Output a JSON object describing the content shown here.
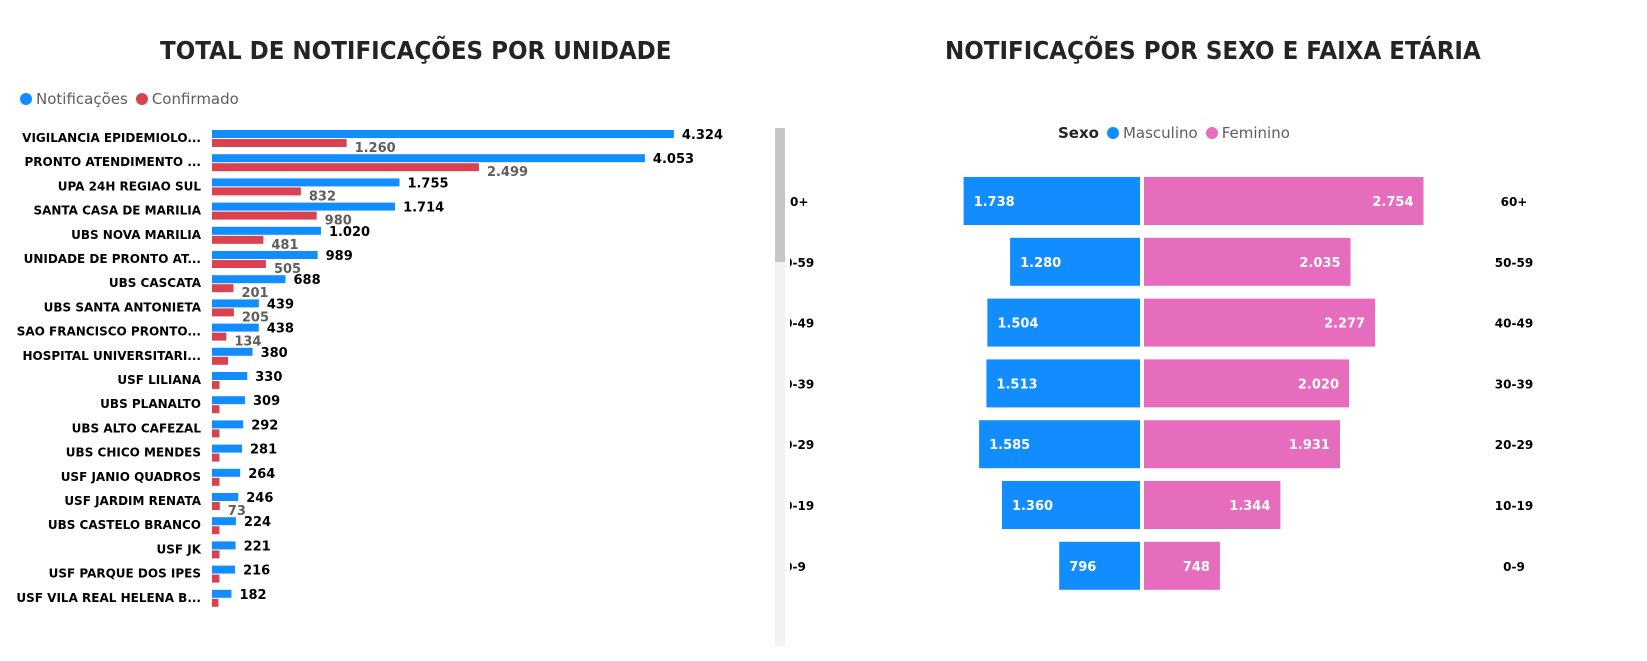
{
  "left": {
    "title": "TOTAL DE NOTIFICAÇÕES POR UNIDADE",
    "legend": [
      {
        "name": "Notificações",
        "color": "#118DFF"
      },
      {
        "name": "Confirmado",
        "color": "#D9434F"
      }
    ]
  },
  "right": {
    "title": "NOTIFICAÇÕES POR SEXO E FAIXA ETÁRIA",
    "legend_title": "Sexo",
    "legend": [
      {
        "name": "Masculino",
        "color": "#118DFF"
      },
      {
        "name": "Feminino",
        "color": "#E66CBD"
      }
    ]
  },
  "chart_data": [
    {
      "type": "bar",
      "orientation": "horizontal",
      "title": "TOTAL DE NOTIFICAÇÕES POR UNIDADE",
      "categories": [
        "VIGILANCIA EPIDEMIOLO...",
        "PRONTO ATENDIMENTO ...",
        "UPA 24H REGIAO SUL",
        "SANTA CASA DE MARILIA",
        "UBS NOVA MARILIA",
        "UNIDADE DE PRONTO AT...",
        "UBS CASCATA",
        "UBS SANTA ANTONIETA",
        "SAO FRANCISCO PRONTO...",
        "HOSPITAL UNIVERSITARI...",
        "USF LILIANA",
        "UBS PLANALTO",
        "UBS ALTO CAFEZAL",
        "UBS CHICO MENDES",
        "USF JANIO QUADROS",
        "USF JARDIM RENATA",
        "UBS CASTELO BRANCO",
        "USF JK",
        "USF PARQUE DOS IPES",
        "USF VILA REAL HELENA B..."
      ],
      "series": [
        {
          "name": "Notificações",
          "color": "#118DFF",
          "values": [
            4324,
            4053,
            1755,
            1714,
            1020,
            989,
            688,
            439,
            438,
            380,
            330,
            309,
            292,
            281,
            264,
            246,
            224,
            221,
            216,
            182
          ],
          "labels": [
            "4.324",
            "4.053",
            "1.755",
            "1.714",
            "1.020",
            "989",
            "688",
            "439",
            "438",
            "380",
            "330",
            "309",
            "292",
            "281",
            "264",
            "246",
            "224",
            "221",
            "216",
            "182"
          ]
        },
        {
          "name": "Confirmado",
          "color": "#D9434F",
          "values": [
            1260,
            2499,
            832,
            980,
            481,
            505,
            201,
            205,
            134,
            150,
            70,
            70,
            70,
            70,
            70,
            73,
            70,
            70,
            70,
            60
          ],
          "labels": [
            "1.260",
            "2.499",
            "832",
            "980",
            "481",
            "505",
            "201",
            "205",
            "134",
            "",
            "",
            "",
            "",
            "",
            "",
            "73",
            "",
            "",
            "",
            ""
          ]
        }
      ],
      "xlim": [
        0,
        4400
      ],
      "legend_position": "top-left"
    },
    {
      "type": "bar",
      "orientation": "horizontal",
      "subtype": "butterfly",
      "title": "NOTIFICAÇÕES POR SEXO E FAIXA ETÁRIA",
      "categories": [
        "60+",
        "50-59",
        "40-49",
        "30-39",
        "20-29",
        "10-19",
        "0-9"
      ],
      "series": [
        {
          "name": "Masculino",
          "color": "#118DFF",
          "values": [
            1738,
            1280,
            1504,
            1513,
            1585,
            1360,
            796
          ],
          "labels": [
            "1.738",
            "1.280",
            "1.504",
            "1.513",
            "1.585",
            "1.360",
            "796"
          ]
        },
        {
          "name": "Feminino",
          "color": "#E66CBD",
          "values": [
            2754,
            2035,
            2277,
            2020,
            1931,
            1344,
            748
          ],
          "labels": [
            "2.754",
            "2.035",
            "2.277",
            "2.020",
            "1.931",
            "1.344",
            "748"
          ]
        }
      ],
      "legend_position": "top-center"
    }
  ]
}
